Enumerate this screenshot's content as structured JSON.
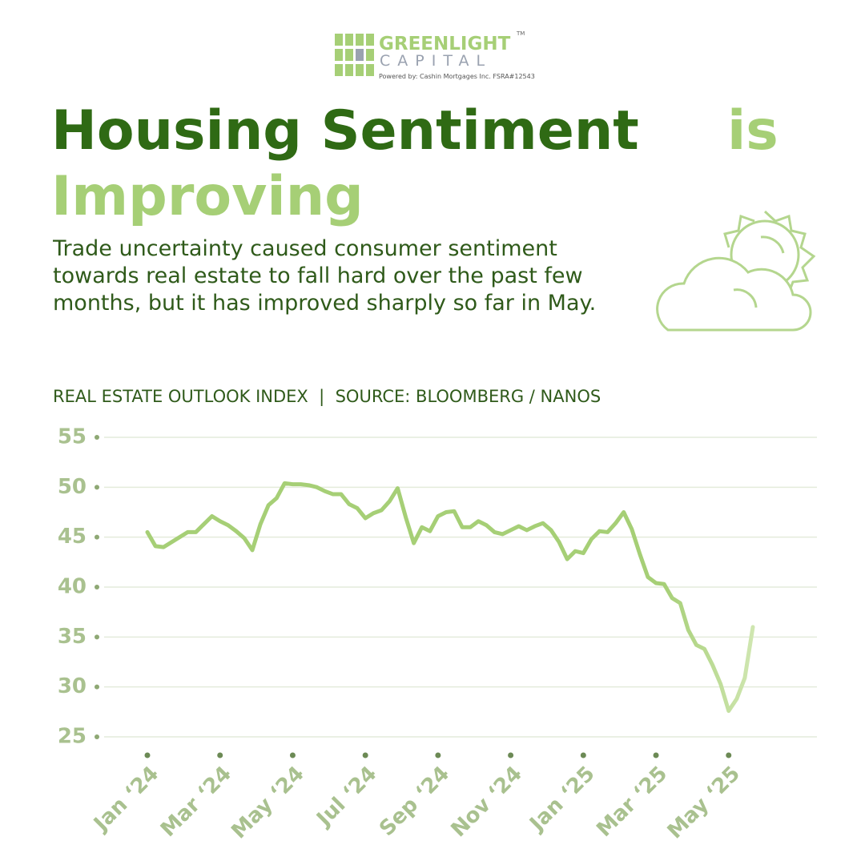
{
  "logo": {
    "name": "GREENLIGHT",
    "sub": "CAPITAL",
    "tm": "TM",
    "powered": "Powered by:  Cashin Mortgages Inc.  FSRA#12543"
  },
  "header": {
    "title_dark": "Housing Sentiment",
    "title_light": "is",
    "title_light_2": "Improving",
    "subtitle": "Trade uncertainty caused consumer sentiment towards real estate to fall hard over the past few months, but it has improved sharply so far in May."
  },
  "chart_data": {
    "type": "line",
    "title": "REAL ESTATE OUTLOOK INDEX  |  SOURCE: BLOOMBERG / NANOS",
    "categories": [
      "Jan ‘24",
      null,
      null,
      null,
      null,
      null,
      null,
      null,
      null,
      "Mar ‘24",
      null,
      null,
      null,
      null,
      null,
      null,
      null,
      null,
      "May ‘24",
      null,
      null,
      null,
      null,
      null,
      null,
      null,
      null,
      "Jul ‘24",
      null,
      null,
      null,
      null,
      null,
      null,
      null,
      null,
      "Sep ‘24",
      null,
      null,
      null,
      null,
      null,
      null,
      null,
      null,
      "Nov ‘24",
      null,
      null,
      null,
      null,
      null,
      null,
      null,
      null,
      "Jan ‘25",
      null,
      null,
      null,
      null,
      null,
      null,
      null,
      null,
      "Mar ‘25",
      null,
      null,
      null,
      null,
      null,
      null,
      null,
      null,
      "May ‘25",
      null,
      null,
      null
    ],
    "values": [
      45.5,
      44.1,
      44.0,
      44.5,
      45.0,
      45.5,
      45.5,
      46.3,
      47.1,
      46.6,
      46.2,
      45.6,
      44.9,
      43.7,
      46.3,
      48.2,
      48.9,
      50.4,
      50.3,
      50.3,
      50.2,
      50.0,
      49.6,
      49.3,
      49.3,
      48.3,
      47.9,
      46.9,
      47.4,
      47.7,
      48.6,
      49.9,
      47.0,
      44.4,
      46.0,
      45.6,
      47.1,
      47.5,
      47.6,
      46.0,
      46.0,
      46.6,
      46.2,
      45.5,
      45.3,
      45.7,
      46.1,
      45.7,
      46.1,
      46.4,
      45.7,
      44.5,
      42.8,
      43.6,
      43.4,
      44.8,
      45.6,
      45.5,
      46.4,
      47.5,
      45.8,
      43.3,
      41.0,
      40.4,
      40.3,
      38.9,
      38.4,
      35.7,
      34.2,
      33.8,
      32.2,
      30.3,
      27.6,
      28.8,
      30.9,
      36.0
    ],
    "color": "#a6cf76",
    "ylim": [
      25,
      55
    ],
    "yticks": [
      25,
      30,
      35,
      40,
      45,
      50,
      55
    ],
    "grid": true
  }
}
